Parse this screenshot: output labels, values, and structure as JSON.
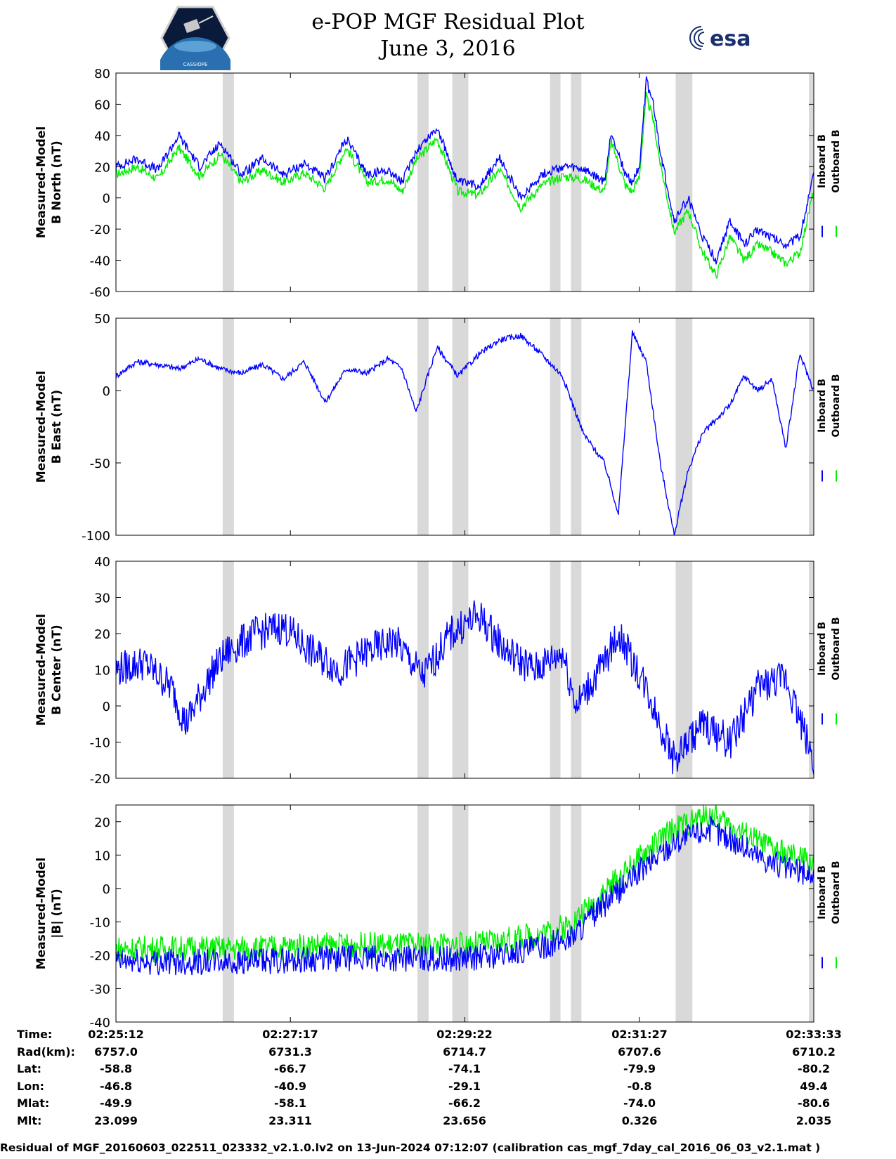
{
  "header": {
    "title": "e-POP MGF Residual Plot",
    "date": "June 3, 2016",
    "left_logo": "cassiope-mission-logo",
    "left_logo_text": "CASSIOPE",
    "right_logo": "esa-logo",
    "right_logo_text": "esa"
  },
  "colors": {
    "inboard": "#0000ff",
    "outboard": "#00ee00",
    "gap_band": "#d9d9d9"
  },
  "chart_data": [
    {
      "type": "line",
      "ylabel_line1": "Measured-Model",
      "ylabel_line2": "B North (nT)",
      "ylim": [
        -60,
        80
      ],
      "yticks": [
        "80",
        "60",
        "40",
        "20",
        "0",
        "-20",
        "-40",
        "-60"
      ],
      "legend": [
        "Inboard B",
        "Outboard B"
      ],
      "legend_position": "right",
      "series": [
        {
          "name": "Inboard B",
          "x": [
            0,
            0.03,
            0.06,
            0.09,
            0.12,
            0.15,
            0.18,
            0.21,
            0.24,
            0.27,
            0.3,
            0.33,
            0.36,
            0.39,
            0.41,
            0.43,
            0.46,
            0.49,
            0.52,
            0.55,
            0.58,
            0.61,
            0.64,
            0.67,
            0.7,
            0.71,
            0.73,
            0.74,
            0.75,
            0.76,
            0.77,
            0.78,
            0.8,
            0.82,
            0.84,
            0.86,
            0.88,
            0.9,
            0.92,
            0.94,
            0.96,
            0.98,
            1.0
          ],
          "values": [
            20,
            25,
            18,
            40,
            20,
            35,
            15,
            25,
            15,
            22,
            12,
            38,
            15,
            18,
            10,
            30,
            45,
            10,
            8,
            25,
            0,
            15,
            20,
            18,
            10,
            42,
            15,
            10,
            20,
            75,
            60,
            30,
            -15,
            0,
            -25,
            -40,
            -15,
            -30,
            -20,
            -25,
            -30,
            -25,
            15
          ]
        },
        {
          "name": "Outboard B",
          "x": [
            0,
            0.03,
            0.06,
            0.09,
            0.12,
            0.15,
            0.18,
            0.21,
            0.24,
            0.27,
            0.3,
            0.33,
            0.36,
            0.39,
            0.41,
            0.43,
            0.46,
            0.49,
            0.52,
            0.55,
            0.58,
            0.61,
            0.64,
            0.67,
            0.7,
            0.71,
            0.73,
            0.74,
            0.75,
            0.76,
            0.77,
            0.78,
            0.8,
            0.82,
            0.84,
            0.86,
            0.88,
            0.9,
            0.92,
            0.94,
            0.96,
            0.98,
            1.0
          ],
          "values": [
            15,
            20,
            12,
            32,
            14,
            28,
            10,
            18,
            10,
            16,
            6,
            32,
            10,
            12,
            4,
            24,
            38,
            4,
            2,
            18,
            -6,
            8,
            14,
            12,
            4,
            36,
            8,
            4,
            14,
            65,
            50,
            22,
            -22,
            -8,
            -34,
            -50,
            -25,
            -40,
            -30,
            -35,
            -42,
            -35,
            5
          ]
        }
      ]
    },
    {
      "type": "line",
      "ylabel_line1": "Measured-Model",
      "ylabel_line2": "B East (nT)",
      "ylim": [
        -100,
        50
      ],
      "yticks": [
        "50",
        "0",
        "-50",
        "-100"
      ],
      "legend": [
        "Inboard B",
        "Outboard B"
      ],
      "legend_position": "right",
      "series": [
        {
          "name": "Inboard B",
          "x": [
            0,
            0.03,
            0.06,
            0.09,
            0.12,
            0.15,
            0.18,
            0.21,
            0.24,
            0.27,
            0.3,
            0.33,
            0.36,
            0.39,
            0.41,
            0.43,
            0.46,
            0.49,
            0.52,
            0.55,
            0.58,
            0.61,
            0.64,
            0.67,
            0.7,
            0.72,
            0.74,
            0.76,
            0.78,
            0.8,
            0.82,
            0.84,
            0.86,
            0.88,
            0.9,
            0.92,
            0.94,
            0.96,
            0.98,
            1.0
          ],
          "values": [
            10,
            20,
            18,
            15,
            22,
            15,
            12,
            18,
            8,
            20,
            -8,
            15,
            12,
            22,
            15,
            -15,
            30,
            10,
            25,
            35,
            38,
            25,
            10,
            -30,
            -50,
            -85,
            40,
            20,
            -50,
            -100,
            -55,
            -30,
            -20,
            -10,
            10,
            0,
            8,
            -40,
            25,
            0
          ]
        }
      ]
    },
    {
      "type": "line",
      "ylabel_line1": "Measured-Model",
      "ylabel_line2": "B Center (nT)",
      "ylim": [
        -20,
        40
      ],
      "yticks": [
        "40",
        "30",
        "20",
        "10",
        "0",
        "-10",
        "-20"
      ],
      "legend": [
        "Inboard B",
        "Outboard B"
      ],
      "legend_position": "right",
      "series": [
        {
          "name": "Inboard B",
          "x": [
            0,
            0.04,
            0.08,
            0.1,
            0.14,
            0.16,
            0.2,
            0.24,
            0.28,
            0.32,
            0.36,
            0.4,
            0.44,
            0.48,
            0.52,
            0.56,
            0.6,
            0.64,
            0.66,
            0.7,
            0.72,
            0.76,
            0.8,
            0.84,
            0.88,
            0.92,
            0.96,
            1.0
          ],
          "values": [
            10,
            12,
            5,
            -5,
            10,
            15,
            20,
            22,
            15,
            10,
            15,
            18,
            8,
            20,
            25,
            15,
            10,
            15,
            0,
            12,
            20,
            5,
            -15,
            -5,
            -10,
            5,
            8,
            -15
          ]
        }
      ]
    },
    {
      "type": "line",
      "ylabel_line1": "Measured-Model",
      "ylabel_line2": "|B| (nT)",
      "ylim": [
        -40,
        25
      ],
      "yticks": [
        "20",
        "10",
        "0",
        "-10",
        "-20",
        "-30",
        "-40"
      ],
      "legend": [
        "Inboard B",
        "Outboard B"
      ],
      "legend_position": "right",
      "series": [
        {
          "name": "Inboard B",
          "x": [
            0,
            0.1,
            0.2,
            0.3,
            0.4,
            0.5,
            0.55,
            0.6,
            0.65,
            0.7,
            0.75,
            0.8,
            0.85,
            0.88,
            0.92,
            0.96,
            1.0
          ],
          "values": [
            -22,
            -22,
            -22,
            -21,
            -21,
            -21,
            -20,
            -18,
            -15,
            -5,
            5,
            14,
            18,
            15,
            10,
            6,
            4
          ]
        },
        {
          "name": "Outboard B",
          "x": [
            0,
            0.1,
            0.2,
            0.3,
            0.4,
            0.5,
            0.55,
            0.6,
            0.65,
            0.7,
            0.75,
            0.8,
            0.85,
            0.88,
            0.92,
            0.96,
            1.0
          ],
          "values": [
            -18,
            -18,
            -18,
            -17,
            -17,
            -17,
            -16,
            -14,
            -11,
            -1,
            9,
            18,
            22,
            19,
            14,
            10,
            8
          ]
        }
      ]
    }
  ],
  "gap_bands": [
    [
      0.153,
      0.169
    ],
    [
      0.432,
      0.448
    ],
    [
      0.482,
      0.505
    ],
    [
      0.622,
      0.637
    ],
    [
      0.652,
      0.667
    ],
    [
      0.802,
      0.826
    ],
    [
      0.993,
      1.0
    ]
  ],
  "x_axis": {
    "ticks": [
      0,
      0.25,
      0.5,
      0.75,
      1.0
    ]
  },
  "footer": {
    "labels": [
      "Time:",
      "Rad(km):",
      "Lat:",
      "Lon:",
      "Mlat:",
      "Mlt:"
    ],
    "columns": [
      [
        "02:25:12",
        "6757.0",
        "-58.8",
        "-46.8",
        "-49.9",
        "23.099"
      ],
      [
        "02:27:17",
        "6731.3",
        "-66.7",
        "-40.9",
        "-58.1",
        "23.311"
      ],
      [
        "02:29:22",
        "6714.7",
        "-74.1",
        "-29.1",
        "-66.2",
        "23.656"
      ],
      [
        "02:31:27",
        "6707.6",
        "-79.9",
        "-0.8",
        "-74.0",
        "0.326"
      ],
      [
        "02:33:33",
        "6710.2",
        "-80.2",
        "49.4",
        "-80.6",
        "2.035"
      ]
    ],
    "caption": "Residual of MGF_20160603_022511_023332_v2.1.0.lv2 on 13-Jun-2024 07:12:07 (calibration cas_mgf_7day_cal_2016_06_03_v2.1.mat )"
  }
}
